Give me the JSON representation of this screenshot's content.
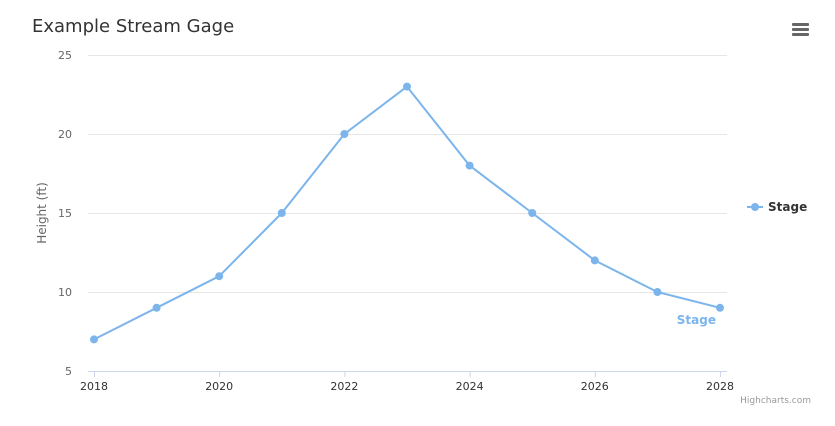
{
  "title": "Example Stream Gage",
  "menu_icon": "hamburger-menu-icon",
  "credits": "Highcharts.com",
  "colors": {
    "series": "#7cb5ec",
    "grid": "#e6e6e6",
    "axis_line": "#ccd6eb",
    "text": "#333333",
    "label": "#666666",
    "menu_icon": "#666666"
  },
  "chart_data": {
    "type": "line",
    "title": "Example Stream Gage",
    "xlabel": "",
    "ylabel": "Height (ft)",
    "xlim": [
      2018,
      2028
    ],
    "ylim": [
      5,
      25
    ],
    "xticks": [
      2018,
      2020,
      2022,
      2024,
      2026,
      2028
    ],
    "yticks": [
      5,
      10,
      15,
      20,
      25
    ],
    "grid": true,
    "legend_position": "right",
    "series": [
      {
        "name": "Stage",
        "x": [
          2018,
          2019,
          2020,
          2021,
          2022,
          2023,
          2024,
          2025,
          2026,
          2027,
          2028
        ],
        "y": [
          7,
          9,
          11,
          15,
          20,
          23,
          18,
          15,
          12,
          10,
          9
        ],
        "end_label": "Stage"
      }
    ]
  }
}
